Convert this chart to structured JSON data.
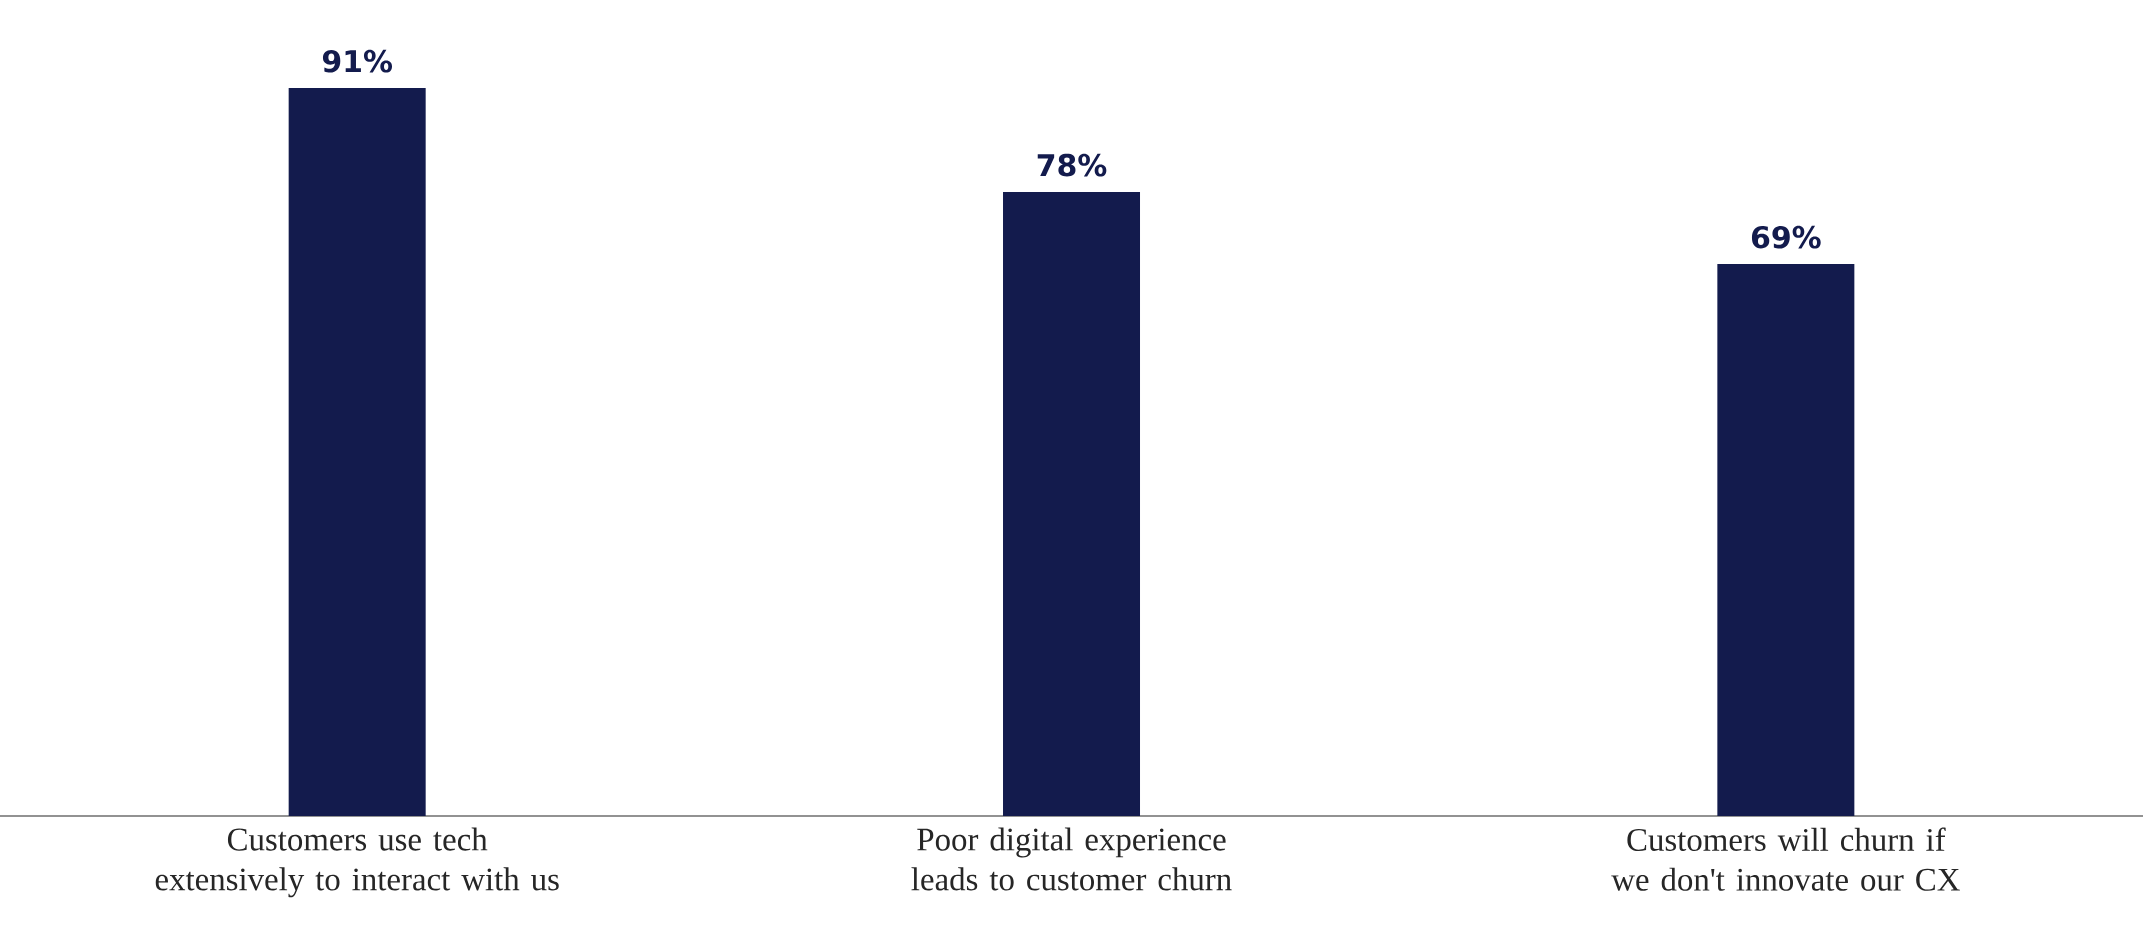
{
  "chart_data": {
    "type": "bar",
    "categories": [
      "Customers use tech extensively to interact with us",
      "Poor digital experience leads to customer churn",
      "Customers will churn if we don't innovate our CX"
    ],
    "values": [
      91,
      78,
      69
    ],
    "value_labels": [
      "91%",
      "78%",
      "69%"
    ],
    "color": "#131b4d"
  }
}
